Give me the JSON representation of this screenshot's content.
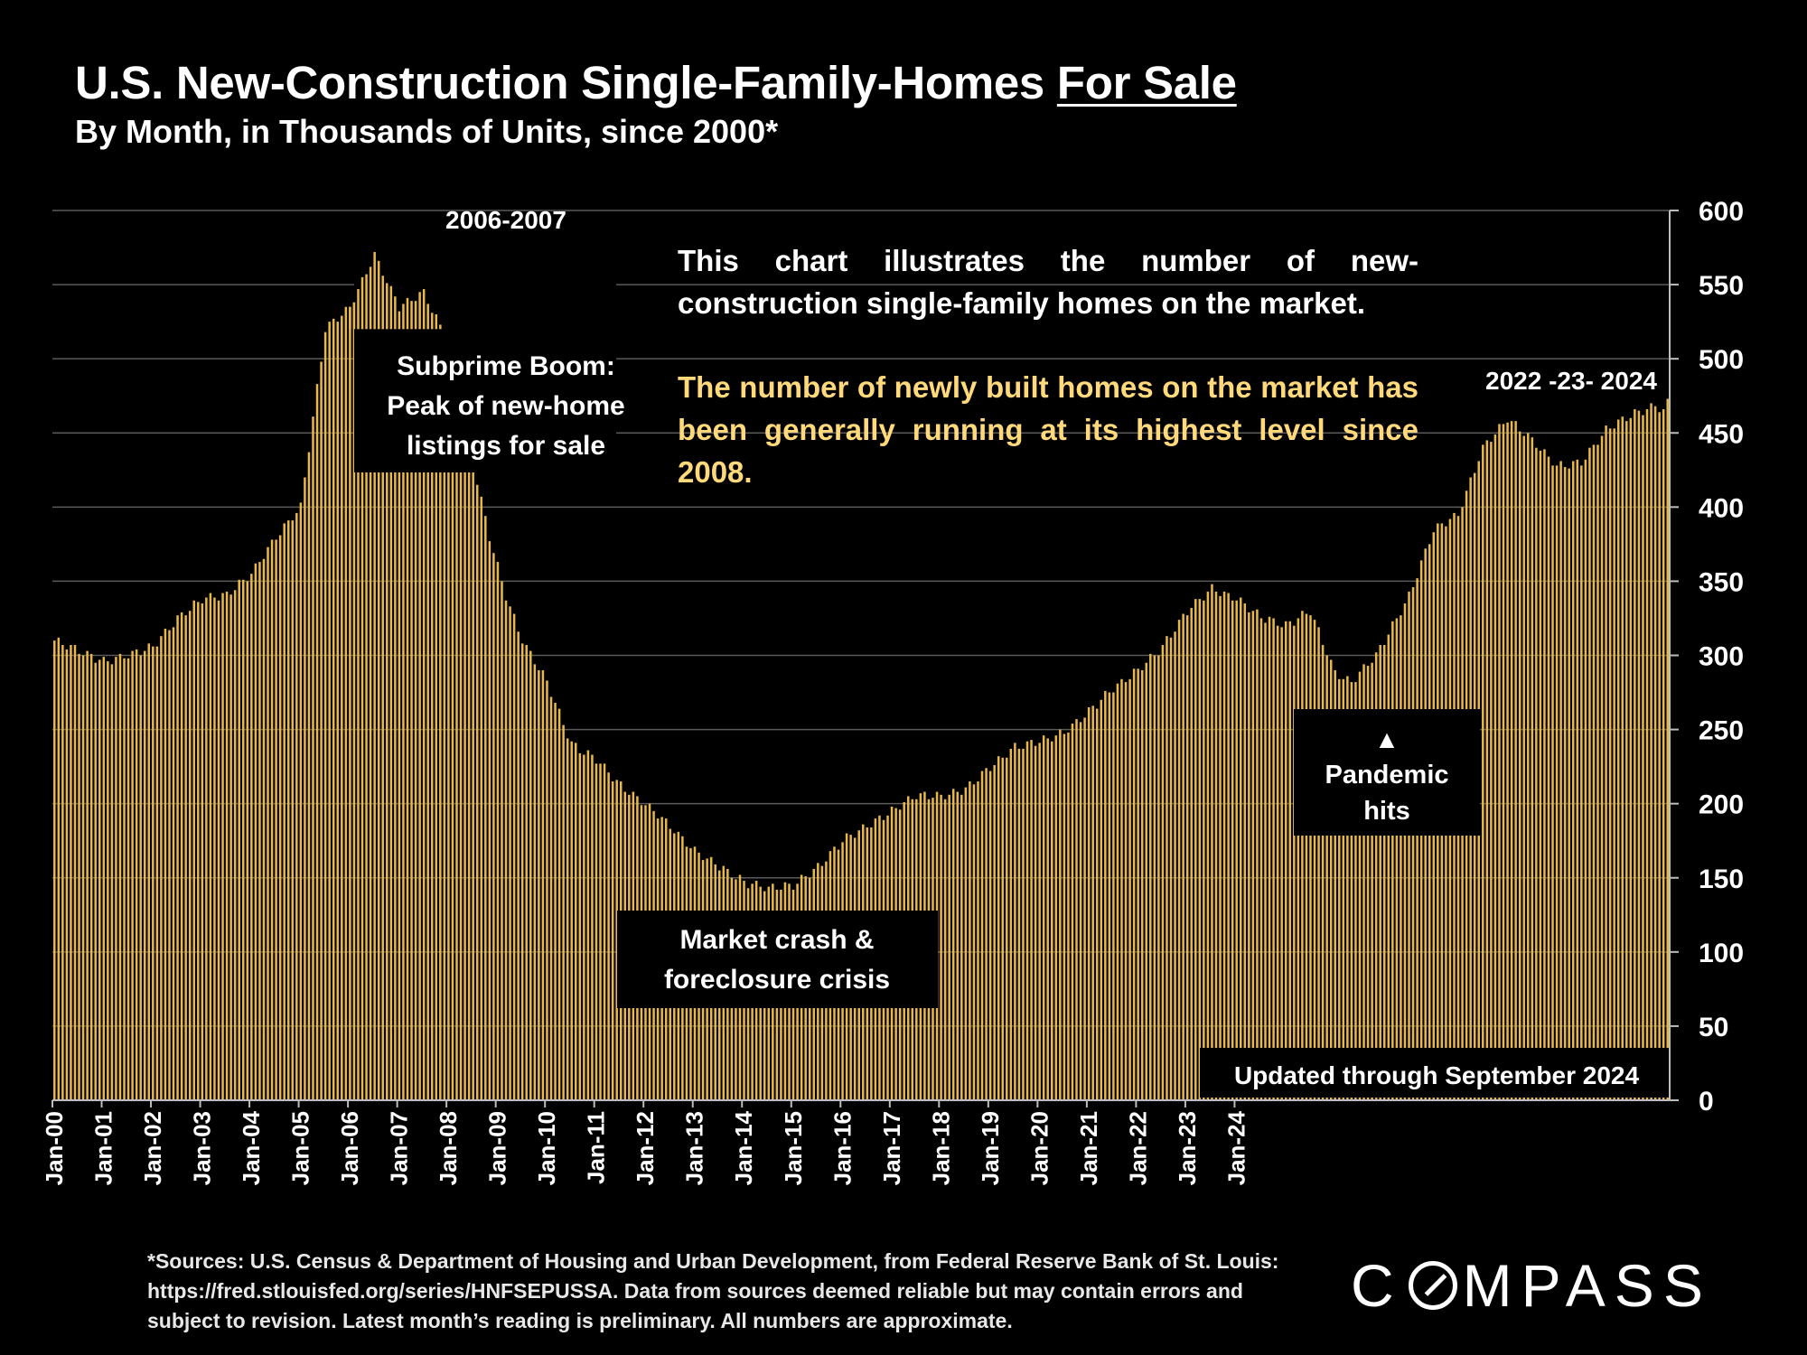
{
  "title": {
    "prefix": "U.S. New-Construction Single-Family-Homes ",
    "underlined": "For Sale"
  },
  "subtitle": "By Month, in Thousands of Units, since 2000*",
  "note": {
    "line1": "This chart illustrates the number of new-construction single-family homes on the market.",
    "line2": "The number of newly built homes on the market has been generally running at its highest level since 2008."
  },
  "footer": "*Sources: U.S. Census & Department of Housing and Urban Development, from Federal Reserve Bank of St. Louis:  https://fred.stlouisfed.org/series/HNFSEPUSSA. Data from sources deemed reliable but may contain errors and subject to revision. Latest month’s reading is preliminary. All numbers are approximate.",
  "logo": {
    "before": "C",
    "after": "MPASS"
  },
  "colors": {
    "bar": "#e8b84a",
    "background": "#000000",
    "grid": "#5a5a5a",
    "highlight": "#ffd97a"
  },
  "chart_data": {
    "type": "bar",
    "title": "U.S. New-Construction Single-Family-Homes For Sale",
    "ylabel": "Thousands of Units",
    "ylim": [
      0,
      600
    ],
    "yticks": [
      0,
      50,
      100,
      150,
      200,
      250,
      300,
      350,
      400,
      450,
      500,
      550,
      600
    ],
    "y_axis_side": "right",
    "x_tick_labels": [
      "Jan-00",
      "Jan-01",
      "Jan-02",
      "Jan-03",
      "Jan-04",
      "Jan-05",
      "Jan-06",
      "Jan-07",
      "Jan-08",
      "Jan-09",
      "Jan-10",
      "Jan-11",
      "Jan-12",
      "Jan-13",
      "Jan-14",
      "Jan-15",
      "Jan-16",
      "Jan-17",
      "Jan-18",
      "Jan-19",
      "Jan-20",
      "Jan-21",
      "Jan-22",
      "Jan-23",
      "Jan-24"
    ],
    "start": "Jan-00",
    "end": "Sep-24",
    "series": [
      {
        "name": "New single-family homes for sale (thousands)",
        "anchors": [
          [
            0,
            310
          ],
          [
            6,
            303
          ],
          [
            12,
            296
          ],
          [
            18,
            300
          ],
          [
            24,
            306
          ],
          [
            30,
            325
          ],
          [
            36,
            338
          ],
          [
            42,
            341
          ],
          [
            48,
            355
          ],
          [
            54,
            380
          ],
          [
            60,
            400
          ],
          [
            66,
            520
          ],
          [
            72,
            535
          ],
          [
            78,
            570
          ],
          [
            84,
            535
          ],
          [
            90,
            545
          ],
          [
            96,
            510
          ],
          [
            102,
            430
          ],
          [
            106,
            380
          ],
          [
            110,
            340
          ],
          [
            114,
            310
          ],
          [
            120,
            282
          ],
          [
            126,
            240
          ],
          [
            132,
            230
          ],
          [
            138,
            212
          ],
          [
            144,
            200
          ],
          [
            150,
            185
          ],
          [
            156,
            168
          ],
          [
            162,
            158
          ],
          [
            168,
            147
          ],
          [
            174,
            143
          ],
          [
            180,
            145
          ],
          [
            186,
            157
          ],
          [
            192,
            175
          ],
          [
            198,
            185
          ],
          [
            204,
            195
          ],
          [
            210,
            206
          ],
          [
            216,
            205
          ],
          [
            222,
            210
          ],
          [
            228,
            225
          ],
          [
            234,
            238
          ],
          [
            240,
            242
          ],
          [
            246,
            248
          ],
          [
            252,
            262
          ],
          [
            258,
            278
          ],
          [
            264,
            290
          ],
          [
            270,
            306
          ],
          [
            276,
            330
          ],
          [
            282,
            345
          ],
          [
            288,
            338
          ],
          [
            294,
            326
          ],
          [
            300,
            320
          ],
          [
            306,
            330
          ],
          [
            312,
            288
          ],
          [
            316,
            282
          ],
          [
            322,
            300
          ],
          [
            330,
            340
          ],
          [
            336,
            385
          ],
          [
            342,
            395
          ],
          [
            348,
            440
          ],
          [
            354,
            460
          ],
          [
            360,
            445
          ],
          [
            366,
            428
          ],
          [
            372,
            430
          ],
          [
            378,
            452
          ],
          [
            384,
            462
          ],
          [
            390,
            468
          ],
          [
            392,
            465
          ],
          [
            393,
            470
          ]
        ]
      }
    ],
    "annotations": [
      {
        "label": "2006-2007",
        "text": "Subprime Boom: Peak of new-home listings for sale"
      },
      {
        "text": "Market crash & foreclosure crisis"
      },
      {
        "marker": "▲",
        "text": "Pandemic hits"
      },
      {
        "label": "2022 -23- 2024"
      },
      {
        "text": "Updated through September 2024"
      }
    ]
  }
}
